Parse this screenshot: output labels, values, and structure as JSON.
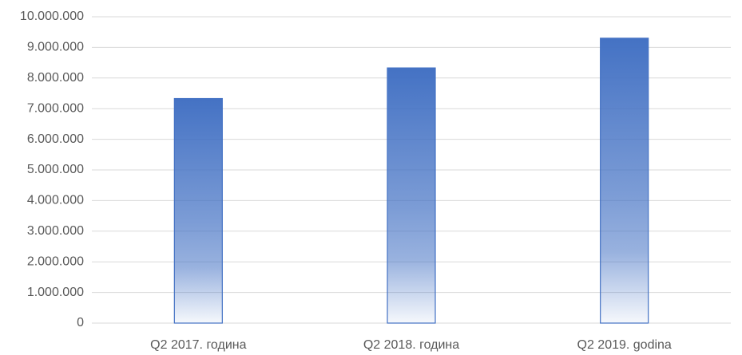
{
  "chart_data": {
    "type": "bar",
    "categories": [
      "Q2 2017. година",
      "Q2 2018. година",
      "Q2 2019. godina"
    ],
    "values": [
      7330000,
      8330000,
      9300000
    ],
    "color": "#4472c4",
    "ylim": [
      0,
      10000000
    ],
    "yticks": [
      0,
      {
        "value": 1000000,
        "label": "1.000.000"
      },
      {
        "value": 2000000,
        "label": "2.000.000"
      },
      {
        "value": 3000000,
        "label": "3.000.000"
      },
      {
        "value": 4000000,
        "label": "4.000.000"
      },
      {
        "value": 5000000,
        "label": "5.000.000"
      },
      {
        "value": 6000000,
        "label": "6.000.000"
      },
      {
        "value": 7000000,
        "label": "7.000.000"
      },
      {
        "value": 8000000,
        "label": "8.000.000"
      },
      {
        "value": 9000000,
        "label": "9.000.000"
      },
      {
        "value": 10000000,
        "label": "10.000.000"
      }
    ],
    "grid": true
  }
}
